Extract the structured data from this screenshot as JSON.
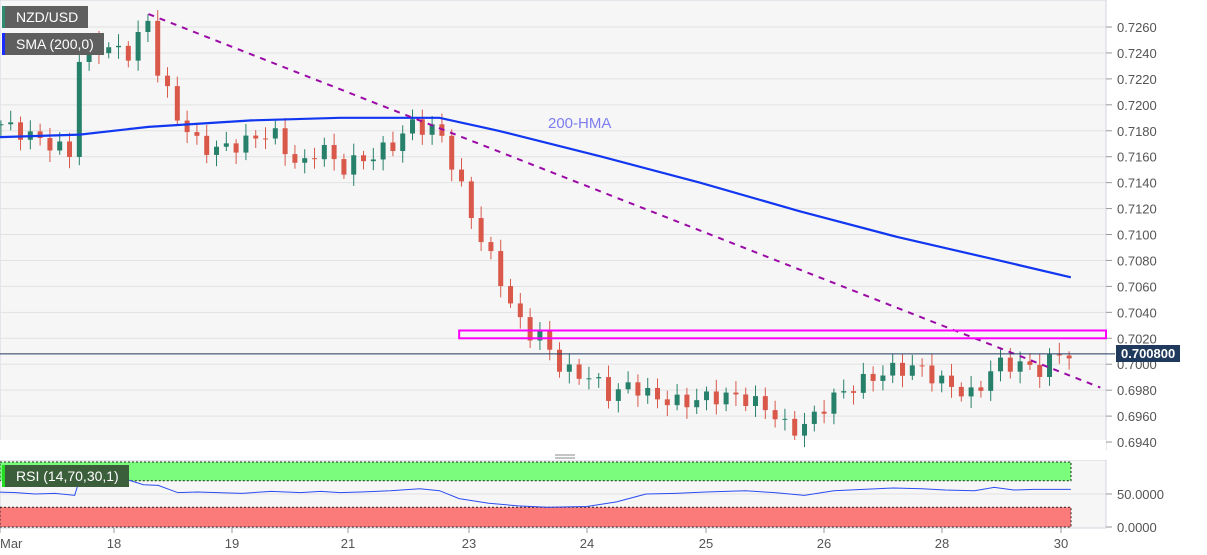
{
  "legend": {
    "symbol": "NZD/USD",
    "sma": "SMA (200,0)",
    "rsi": "RSI (14,70,30,1)"
  },
  "annotation": "200-HMA",
  "current_price_label": "0.700800",
  "colors": {
    "up": "#26806a",
    "down": "#d9584a",
    "hma": "#1237f0",
    "trendline": "#9b0aa6",
    "resistance": "#ff00ff",
    "rsi_line": "#2b4cf0",
    "overbought": "#7cfc7c",
    "oversold": "#fb7b7b",
    "symbol_bar": "#2e8b6e",
    "sma_bar": "#1a2cff",
    "rsi_bar": "#22dd22"
  },
  "chart_data": [
    {
      "type": "candlestick",
      "title": "NZD/USD",
      "ylim": [
        0.693,
        0.7272
      ],
      "y_ticks": [
        "0.7260",
        "0.7240",
        "0.7220",
        "0.7200",
        "0.7180",
        "0.7160",
        "0.7140",
        "0.7120",
        "0.7100",
        "0.7080",
        "0.7060",
        "0.7040",
        "0.7020",
        "0.7000",
        "0.6980",
        "0.6960",
        "0.6940"
      ],
      "x_ticks": [
        {
          "day": 17,
          "label": "Mar"
        },
        {
          "day": 18,
          "label": "18"
        },
        {
          "day": 19,
          "label": "19"
        },
        {
          "day": 21,
          "label": "21"
        },
        {
          "day": 23,
          "label": "23"
        },
        {
          "day": 24,
          "label": "24"
        },
        {
          "day": 25,
          "label": "25"
        },
        {
          "day": 26,
          "label": "26"
        },
        {
          "day": 28,
          "label": "28"
        },
        {
          "day": 30,
          "label": "30"
        }
      ],
      "price_path": [
        [
          17,
          1,
          0.7185
        ],
        [
          17,
          11,
          0.717
        ],
        [
          17,
          16,
          0.716
        ],
        [
          17,
          17,
          0.724
        ],
        [
          17,
          21,
          0.7245
        ],
        [
          18,
          3,
          0.724
        ],
        [
          18,
          7,
          0.7265
        ],
        [
          18,
          9,
          0.7225
        ],
        [
          18,
          13,
          0.719
        ],
        [
          18,
          17,
          0.717
        ],
        [
          18,
          20,
          0.7165
        ],
        [
          19,
          2,
          0.717
        ],
        [
          19,
          8,
          0.718
        ],
        [
          19,
          14,
          0.715
        ],
        [
          19,
          18,
          0.717
        ],
        [
          19,
          22,
          0.715
        ],
        [
          22,
          0,
          0.7155
        ],
        [
          22,
          4,
          0.716
        ],
        [
          22,
          9,
          0.717
        ],
        [
          22,
          12,
          0.7185
        ],
        [
          22,
          18,
          0.718
        ],
        [
          22,
          22,
          0.714
        ],
        [
          23,
          2,
          0.71
        ],
        [
          23,
          6,
          0.707
        ],
        [
          23,
          9,
          0.704
        ],
        [
          23,
          12,
          0.7025
        ],
        [
          23,
          15,
          0.702
        ],
        [
          23,
          19,
          0.6995
        ],
        [
          24,
          1,
          0.699
        ],
        [
          24,
          5,
          0.6975
        ],
        [
          24,
          9,
          0.6985
        ],
        [
          24,
          13,
          0.6975
        ],
        [
          24,
          19,
          0.697
        ],
        [
          25,
          1,
          0.6975
        ],
        [
          25,
          7,
          0.6975
        ],
        [
          25,
          13,
          0.6965
        ],
        [
          25,
          17,
          0.6948
        ],
        [
          25,
          21,
          0.6955
        ],
        [
          26,
          1,
          0.6972
        ],
        [
          26,
          7,
          0.6985
        ],
        [
          26,
          13,
          0.6995
        ],
        [
          26,
          19,
          0.6998
        ],
        [
          29,
          0,
          0.6985
        ],
        [
          29,
          6,
          0.6975
        ],
        [
          29,
          10,
          0.7
        ],
        [
          29,
          15,
          0.7
        ],
        [
          29,
          19,
          0.6995
        ],
        [
          29,
          23,
          0.7008
        ],
        [
          30,
          2,
          0.7008
        ]
      ],
      "hma_200": [
        [
          17,
          0,
          0.7175
        ],
        [
          17,
          17,
          0.7177
        ],
        [
          18,
          7,
          0.7183
        ],
        [
          19,
          4,
          0.7188
        ],
        [
          19,
          22,
          0.719
        ],
        [
          22,
          18,
          0.719
        ],
        [
          23,
          6,
          0.718
        ],
        [
          24,
          3,
          0.716
        ],
        [
          24,
          23,
          0.714
        ],
        [
          25,
          19,
          0.7118
        ],
        [
          26,
          15,
          0.7098
        ],
        [
          29,
          11,
          0.708
        ],
        [
          30,
          2,
          0.7067
        ]
      ],
      "trendline": [
        [
          18,
          7,
          0.727
        ],
        [
          30,
          8,
          0.6982
        ]
      ],
      "resistance_zone": {
        "from": [
          22,
          22
        ],
        "low": 0.702,
        "high": 0.7026
      },
      "current_price": 0.7008
    },
    {
      "type": "line",
      "title": "RSI (14,70,30,1)",
      "ylim": [
        0,
        100
      ],
      "y_ticks": [
        "50.0000",
        "0.0000"
      ],
      "overbought": 70,
      "oversold": 30,
      "values": [
        [
          17,
          0,
          53
        ],
        [
          17,
          4,
          52
        ],
        [
          17,
          8,
          50
        ],
        [
          17,
          12,
          51
        ],
        [
          17,
          16,
          48
        ],
        [
          17,
          17,
          72
        ],
        [
          17,
          21,
          70
        ],
        [
          18,
          3,
          71
        ],
        [
          18,
          6,
          64
        ],
        [
          18,
          9,
          63
        ],
        [
          18,
          13,
          52
        ],
        [
          18,
          17,
          53
        ],
        [
          18,
          21,
          52
        ],
        [
          19,
          2,
          51
        ],
        [
          19,
          8,
          54
        ],
        [
          19,
          14,
          52
        ],
        [
          19,
          18,
          54
        ],
        [
          19,
          22,
          52
        ],
        [
          22,
          2,
          53
        ],
        [
          22,
          8,
          55
        ],
        [
          22,
          14,
          58
        ],
        [
          22,
          18,
          55
        ],
        [
          22,
          22,
          43
        ],
        [
          23,
          4,
          36
        ],
        [
          23,
          10,
          32
        ],
        [
          23,
          16,
          30
        ],
        [
          24,
          0,
          31
        ],
        [
          24,
          6,
          38
        ],
        [
          24,
          12,
          50
        ],
        [
          24,
          18,
          51
        ],
        [
          25,
          0,
          53
        ],
        [
          25,
          8,
          55
        ],
        [
          25,
          14,
          52
        ],
        [
          25,
          20,
          48
        ],
        [
          26,
          2,
          55
        ],
        [
          26,
          8,
          57
        ],
        [
          26,
          14,
          59
        ],
        [
          26,
          20,
          58
        ],
        [
          29,
          0,
          56
        ],
        [
          29,
          6,
          55
        ],
        [
          29,
          10,
          60
        ],
        [
          29,
          14,
          56
        ],
        [
          29,
          18,
          57
        ],
        [
          30,
          2,
          57
        ]
      ]
    }
  ]
}
